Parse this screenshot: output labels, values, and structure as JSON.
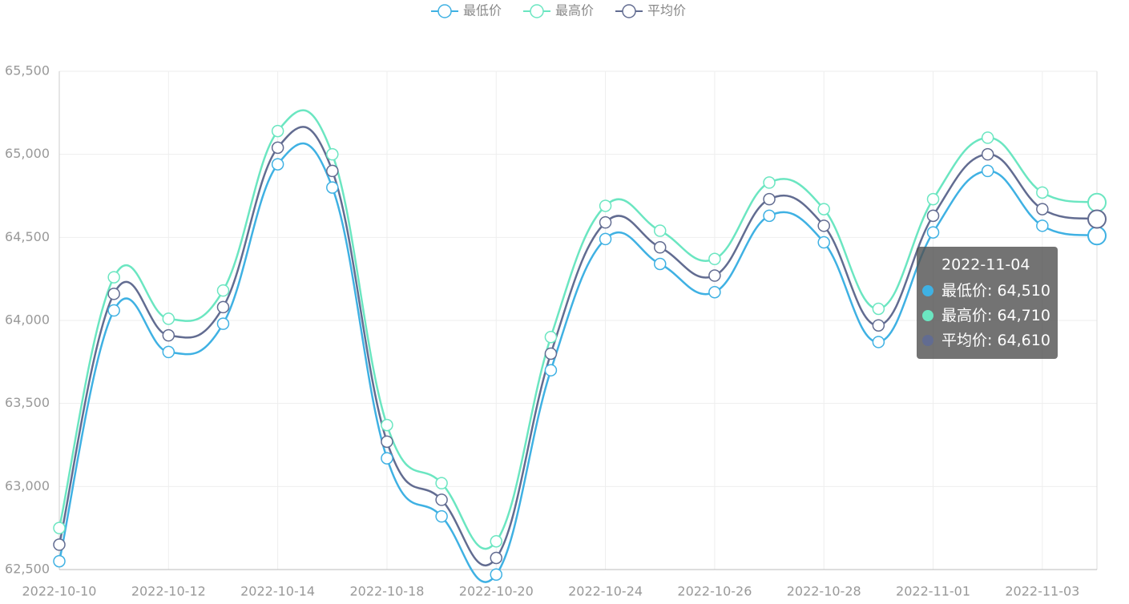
{
  "chart_data": {
    "type": "line",
    "smooth": true,
    "grid": true,
    "legend_position": "top",
    "categories": [
      "2022-10-10",
      null,
      "2022-10-12",
      null,
      "2022-10-14",
      null,
      "2022-10-18",
      null,
      "2022-10-20",
      null,
      "2022-10-24",
      null,
      "2022-10-26",
      null,
      "2022-10-28",
      null,
      "2022-11-01",
      null,
      "2022-11-03",
      "2022-11-04"
    ],
    "xlabel_interval": 2,
    "series": [
      {
        "name": "最低价",
        "color": "#3fb1e3",
        "values": [
          62550,
          64060,
          63810,
          63980,
          64940,
          64800,
          63170,
          62820,
          62470,
          63700,
          64490,
          64340,
          64170,
          64630,
          64470,
          63870,
          64530,
          64900,
          64570,
          64510
        ]
      },
      {
        "name": "最高价",
        "color": "#6be6c1",
        "values": [
          62750,
          64260,
          64010,
          64180,
          65140,
          65000,
          63370,
          63020,
          62670,
          63900,
          64690,
          64540,
          64370,
          64830,
          64670,
          64070,
          64730,
          65100,
          64770,
          64710
        ]
      },
      {
        "name": "平均价",
        "color": "#626c91",
        "values": [
          62650,
          64160,
          63910,
          64080,
          65040,
          64900,
          63270,
          62920,
          62570,
          63800,
          64590,
          64440,
          64270,
          64730,
          64570,
          63970,
          64630,
          65000,
          64670,
          64610
        ]
      }
    ],
    "ylim": [
      62500,
      65500
    ],
    "yticks": [
      {
        "value": 62500,
        "label": "62,500"
      },
      {
        "value": 63000,
        "label": "63,000"
      },
      {
        "value": 63500,
        "label": "63,500"
      },
      {
        "value": 64000,
        "label": "64,000"
      },
      {
        "value": 64500,
        "label": "64,500"
      },
      {
        "value": 65000,
        "label": "65,000"
      },
      {
        "value": 65500,
        "label": "65,500"
      }
    ],
    "tooltip": {
      "category": 19,
      "value_labels": [
        "64,510",
        "64,710",
        "64,610"
      ]
    }
  }
}
